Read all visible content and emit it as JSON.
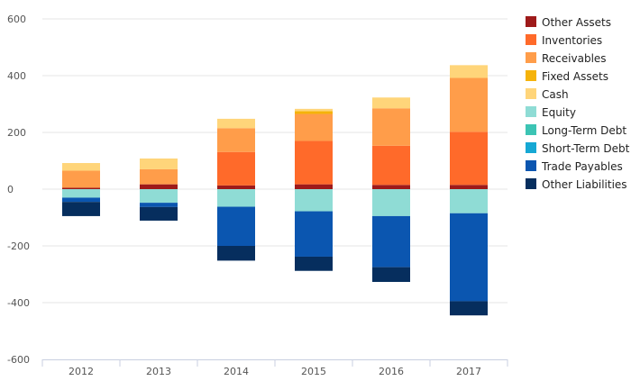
{
  "chart_data": {
    "type": "bar",
    "stacked": true,
    "categories": [
      "2012",
      "2013",
      "2014",
      "2015",
      "2016",
      "2017"
    ],
    "ylim": [
      -600,
      600
    ],
    "yticks": [
      600,
      400,
      200,
      0,
      -200,
      -400,
      -600
    ],
    "grid": true,
    "legend_position": "right",
    "series": [
      {
        "name": "Other Assets",
        "color": "#9e1a1a",
        "values": [
          5,
          17,
          13,
          17,
          15,
          15
        ]
      },
      {
        "name": "Inventories",
        "color": "#ff6a2a",
        "values": [
          0,
          0,
          118,
          153,
          138,
          187
        ]
      },
      {
        "name": "Receivables",
        "color": "#ff9d4a",
        "values": [
          60,
          53,
          84,
          95,
          132,
          190
        ]
      },
      {
        "name": "Fixed Assets",
        "color": "#f5b30a",
        "values": [
          0,
          0,
          0,
          10,
          0,
          0
        ]
      },
      {
        "name": "Cash",
        "color": "#ffd57a",
        "values": [
          27,
          38,
          33,
          8,
          38,
          45
        ]
      },
      {
        "name": "Equity",
        "color": "#8fdcd5",
        "values": [
          -30,
          -48,
          -62,
          -78,
          -95,
          -85
        ]
      },
      {
        "name": "Long-Term Debt",
        "color": "#3cc4b4",
        "values": [
          0,
          0,
          0,
          0,
          0,
          0
        ]
      },
      {
        "name": "Short-Term Debt",
        "color": "#16a8d4",
        "values": [
          0,
          0,
          0,
          0,
          0,
          0
        ]
      },
      {
        "name": "Trade Payables",
        "color": "#0b56b0",
        "values": [
          -15,
          -15,
          -138,
          -160,
          -180,
          -310
        ]
      },
      {
        "name": "Other Liabilities",
        "color": "#062e5e",
        "values": [
          -50,
          -48,
          -52,
          -50,
          -52,
          -50
        ]
      }
    ]
  }
}
